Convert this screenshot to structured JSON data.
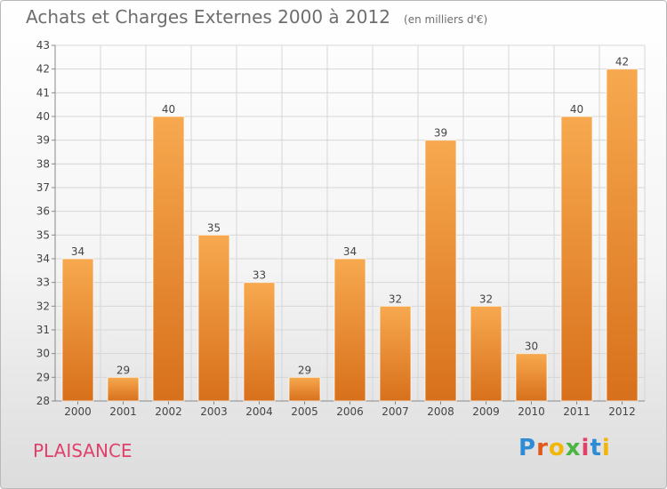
{
  "header": {
    "title": "Achats et Charges Externes 2000 à 2012",
    "unit": "(en milliers d'€)"
  },
  "footer": {
    "commune": "PLAISANCE",
    "logo_text": "Proxiti",
    "logo_colors": [
      "#2e8bd6",
      "#e05a1c",
      "#f2b705",
      "#4bb543",
      "#e0416b",
      "#2e8bd6",
      "#f2b705"
    ]
  },
  "colors": {
    "bar_top": "#f7a94f",
    "bar_bottom": "#d8701b",
    "grid": "#d6d6d6",
    "axis_text": "#444444",
    "title": "#6e6e6e",
    "commune": "#e0416b"
  },
  "chart_data": {
    "type": "bar",
    "title": "Achats et Charges Externes 2000 à 2012",
    "xlabel": "",
    "ylabel": "",
    "categories": [
      "2000",
      "2001",
      "2002",
      "2003",
      "2004",
      "2005",
      "2006",
      "2007",
      "2008",
      "2009",
      "2010",
      "2011",
      "2012"
    ],
    "values": [
      34,
      29,
      40,
      35,
      33,
      29,
      34,
      32,
      39,
      32,
      30,
      40,
      42
    ],
    "ylim": [
      28,
      43
    ],
    "yticks": [
      28,
      29,
      30,
      31,
      32,
      33,
      34,
      35,
      36,
      37,
      38,
      39,
      40,
      41,
      42,
      43
    ],
    "grid": true,
    "legend": "none"
  }
}
